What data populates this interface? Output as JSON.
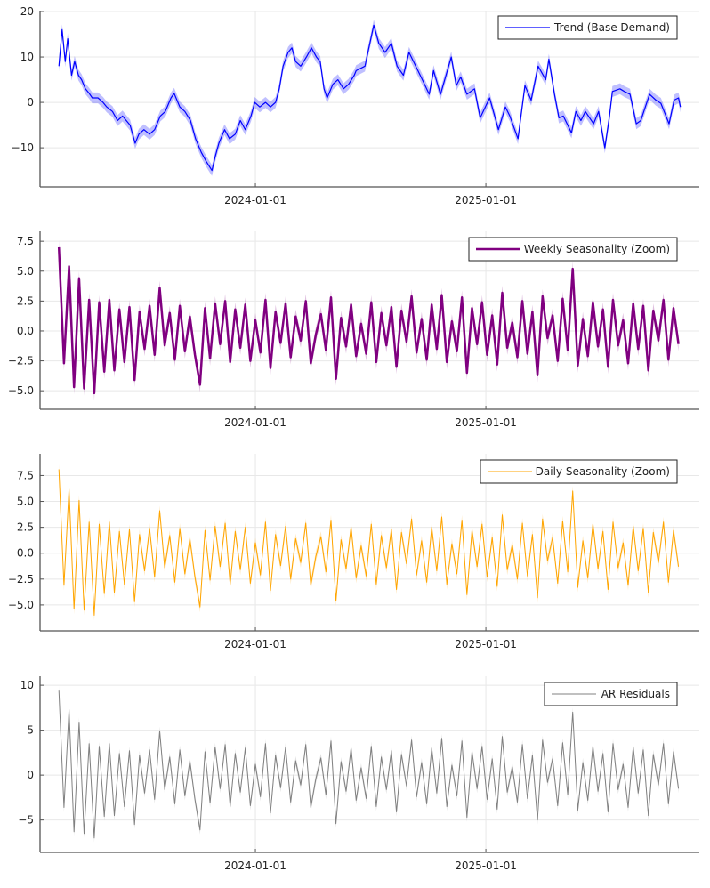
{
  "colors": {
    "trend": "#0000ff",
    "weekly": "#800080",
    "daily": "#ffa500",
    "residual": "#808080"
  },
  "chart_data": [
    {
      "type": "line",
      "x_unit": "days relative to 2024-01-01",
      "legend": "Trend (Base Demand)",
      "legend_position": "top-right",
      "grid": true,
      "xlim": [
        -342,
        705
      ],
      "ylim": [
        -18.6,
        20.2
      ],
      "yticks": [
        {
          "v": 20,
          "label": "20"
        },
        {
          "v": 10,
          "label": "10"
        },
        {
          "v": 0,
          "label": "0"
        },
        {
          "v": -10,
          "label": "−10"
        }
      ],
      "xticks": [
        {
          "v": 0,
          "label": "2024-01-01"
        },
        {
          "v": 366,
          "label": "2025-01-01"
        }
      ],
      "color_key": "trend",
      "points": [
        [
          -312,
          8
        ],
        [
          -307,
          16
        ],
        [
          -302,
          9
        ],
        [
          -298,
          14
        ],
        [
          -292,
          6
        ],
        [
          -287,
          9
        ],
        [
          -281,
          6
        ],
        [
          -276,
          5
        ],
        [
          -270,
          3
        ],
        [
          -264,
          2
        ],
        [
          -259,
          1
        ],
        [
          -250,
          1
        ],
        [
          -242,
          0
        ],
        [
          -236,
          -1
        ],
        [
          -227,
          -2
        ],
        [
          -219,
          -4
        ],
        [
          -211,
          -3
        ],
        [
          -199,
          -5
        ],
        [
          -191,
          -9
        ],
        [
          -185,
          -7
        ],
        [
          -177,
          -6
        ],
        [
          -168,
          -7
        ],
        [
          -160,
          -6
        ],
        [
          -151,
          -3
        ],
        [
          -143,
          -2
        ],
        [
          -134,
          1
        ],
        [
          -129,
          2
        ],
        [
          -120,
          -1
        ],
        [
          -112,
          -2
        ],
        [
          -103,
          -4
        ],
        [
          -95,
          -8
        ],
        [
          -86,
          -11
        ],
        [
          -78,
          -13
        ],
        [
          -69,
          -15
        ],
        [
          -64,
          -12
        ],
        [
          -58,
          -9
        ],
        [
          -49,
          -6
        ],
        [
          -41,
          -8
        ],
        [
          -32,
          -7
        ],
        [
          -24,
          -4
        ],
        [
          -16,
          -6
        ],
        [
          -7,
          -3
        ],
        [
          -1,
          0
        ],
        [
          7,
          -1
        ],
        [
          16,
          0
        ],
        [
          24,
          -1
        ],
        [
          32,
          0
        ],
        [
          38,
          3
        ],
        [
          44,
          8
        ],
        [
          52,
          11
        ],
        [
          58,
          12
        ],
        [
          64,
          9
        ],
        [
          72,
          8
        ],
        [
          81,
          10
        ],
        [
          89,
          12
        ],
        [
          97,
          10
        ],
        [
          103,
          9
        ],
        [
          109,
          3
        ],
        [
          114,
          1
        ],
        [
          123,
          4
        ],
        [
          131,
          5
        ],
        [
          140,
          3
        ],
        [
          148,
          4
        ],
        [
          157,
          6
        ],
        [
          160,
          7
        ],
        [
          174,
          8
        ],
        [
          188,
          17
        ],
        [
          196,
          13
        ],
        [
          206,
          11
        ],
        [
          216,
          13
        ],
        [
          225,
          8
        ],
        [
          235,
          6
        ],
        [
          244,
          11
        ],
        [
          263,
          5.6
        ],
        [
          276,
          1.8
        ],
        [
          283,
          7
        ],
        [
          294,
          1.8
        ],
        [
          311,
          10
        ],
        [
          319,
          3.7
        ],
        [
          326,
          5.6
        ],
        [
          336,
          1.8
        ],
        [
          348,
          3
        ],
        [
          357,
          -3.4
        ],
        [
          372,
          1
        ],
        [
          386,
          -6
        ],
        [
          397,
          -1
        ],
        [
          404,
          -3
        ],
        [
          417,
          -8
        ],
        [
          428,
          3.7
        ],
        [
          438,
          0.5
        ],
        [
          449,
          8
        ],
        [
          461,
          5
        ],
        [
          466,
          9.5
        ],
        [
          475,
          1.8
        ],
        [
          482,
          -3.4
        ],
        [
          489,
          -3
        ],
        [
          502,
          -6.7
        ],
        [
          509,
          -2
        ],
        [
          517,
          -4
        ],
        [
          524,
          -2
        ],
        [
          537,
          -4.7
        ],
        [
          545,
          -2
        ],
        [
          555,
          -10
        ],
        [
          562,
          -3.4
        ],
        [
          567,
          2.4
        ],
        [
          579,
          3
        ],
        [
          586,
          2.4
        ],
        [
          595,
          1.8
        ],
        [
          605,
          -4.7
        ],
        [
          612,
          -4
        ],
        [
          626,
          1.8
        ],
        [
          636,
          0.5
        ],
        [
          644,
          -0.2
        ],
        [
          657,
          -4.7
        ],
        [
          665,
          0.5
        ],
        [
          672,
          1
        ],
        [
          675,
          -1
        ]
      ]
    },
    {
      "type": "line",
      "x_unit": "days relative to 2024-01-01",
      "legend": "Weekly Seasonality (Zoom)",
      "legend_position": "top-right",
      "grid": true,
      "xlim": [
        -342,
        705
      ],
      "ylim": [
        -6.55,
        8.33
      ],
      "yticks": [
        {
          "v": 7.5,
          "label": "7.5"
        },
        {
          "v": 5,
          "label": "5.0"
        },
        {
          "v": 2.5,
          "label": "2.5"
        },
        {
          "v": 0,
          "label": "0.0"
        },
        {
          "v": -2.5,
          "label": "−2.5"
        },
        {
          "v": -5,
          "label": "−5.0"
        }
      ],
      "xticks": [
        {
          "v": 0,
          "label": "2024-01-01"
        },
        {
          "v": 366,
          "label": "2025-01-01"
        }
      ],
      "color_key": "weekly",
      "x_start": -312,
      "x_step": 8,
      "values": [
        7.0,
        -2.7,
        5.4,
        -4.7,
        4.4,
        -4.8,
        2.6,
        -5.2,
        2.4,
        -3.4,
        2.6,
        -3.3,
        1.8,
        -2.6,
        2.0,
        -4.1,
        1.6,
        -1.5,
        2.1,
        -2.0,
        3.6,
        -1.2,
        1.5,
        -2.4,
        2.1,
        -1.7,
        1.2,
        -2.0,
        -4.5,
        1.9,
        -2.3,
        2.3,
        -1.1,
        2.5,
        -2.6,
        1.8,
        -1.4,
        2.2,
        -2.5,
        0.9,
        -1.8,
        2.6,
        -3.1,
        1.6,
        -1.0,
        2.3,
        -2.2,
        1.2,
        -0.8,
        2.5,
        -2.7,
        -0.3,
        1.4,
        -1.6,
        2.8,
        -4.0,
        1.1,
        -1.3,
        2.2,
        -2.1,
        0.6,
        -1.9,
        2.4,
        -2.6,
        1.5,
        -1.2,
        2.0,
        -3.0,
        1.7,
        -0.9,
        2.9,
        -1.8,
        1.0,
        -2.4,
        2.2,
        -1.5,
        3.0,
        -2.6,
        0.8,
        -1.7,
        2.8,
        -3.5,
        1.9,
        -1.1,
        2.4,
        -2.0,
        1.3,
        -2.8,
        3.2,
        -1.4,
        0.7,
        -2.2,
        2.5,
        -1.9,
        1.6,
        -3.7,
        2.9,
        -0.6,
        1.3,
        -2.5,
        2.7,
        -1.6,
        5.2,
        -2.9,
        1.0,
        -2.1,
        2.4,
        -1.3,
        1.8,
        -3.0,
        2.6,
        -1.2,
        0.9,
        -2.7,
        2.3,
        -1.5,
        2.1,
        -3.3,
        1.7,
        -0.8,
        2.6,
        -2.4,
        1.9,
        -1.1
      ]
    },
    {
      "type": "line",
      "x_unit": "days relative to 2024-01-01",
      "legend": "Daily Seasonality (Zoom)",
      "legend_position": "top-right",
      "grid": true,
      "xlim": [
        -342,
        705
      ],
      "ylim": [
        -7.5,
        9.6
      ],
      "yticks": [
        {
          "v": 7.5,
          "label": "7.5"
        },
        {
          "v": 5,
          "label": "5.0"
        },
        {
          "v": 2.5,
          "label": "2.5"
        },
        {
          "v": 0,
          "label": "0.0"
        },
        {
          "v": -2.5,
          "label": "−2.5"
        },
        {
          "v": -5,
          "label": "−5.0"
        }
      ],
      "xticks": [
        {
          "v": 0,
          "label": "2024-01-01"
        },
        {
          "v": 366,
          "label": "2025-01-01"
        }
      ],
      "color_key": "daily",
      "x_start": -312,
      "x_step": 8,
      "values": [
        8.1,
        -3.1,
        6.2,
        -5.4,
        5.1,
        -5.5,
        3.0,
        -6.0,
        2.8,
        -3.9,
        3.0,
        -3.8,
        2.1,
        -3.0,
        2.3,
        -4.7,
        1.8,
        -1.7,
        2.4,
        -2.3,
        4.1,
        -1.4,
        1.7,
        -2.8,
        2.4,
        -2.0,
        1.4,
        -2.3,
        -5.2,
        2.2,
        -2.6,
        2.6,
        -1.3,
        2.9,
        -3.0,
        2.1,
        -1.6,
        2.5,
        -2.9,
        1.0,
        -2.1,
        3.0,
        -3.6,
        1.8,
        -1.2,
        2.6,
        -2.5,
        1.4,
        -0.9,
        2.9,
        -3.1,
        -0.3,
        1.6,
        -1.8,
        3.2,
        -4.6,
        1.3,
        -1.5,
        2.5,
        -2.4,
        0.7,
        -2.2,
        2.8,
        -3.0,
        1.7,
        -1.4,
        2.3,
        -3.5,
        2.0,
        -1.0,
        3.3,
        -2.1,
        1.2,
        -2.8,
        2.5,
        -1.7,
        3.5,
        -3.0,
        0.9,
        -2.0,
        3.2,
        -4.0,
        2.2,
        -1.3,
        2.8,
        -2.3,
        1.5,
        -3.2,
        3.7,
        -1.6,
        0.8,
        -2.5,
        2.9,
        -2.2,
        1.8,
        -4.3,
        3.3,
        -0.7,
        1.5,
        -2.9,
        3.1,
        -1.8,
        6.0,
        -3.3,
        1.2,
        -2.4,
        2.8,
        -1.5,
        2.1,
        -3.5,
        3.0,
        -1.4,
        1.0,
        -3.1,
        2.6,
        -1.7,
        2.4,
        -3.8,
        2.0,
        -0.9,
        3.0,
        -2.8,
        2.2,
        -1.3
      ]
    },
    {
      "type": "line",
      "x_unit": "days relative to 2024-01-01",
      "legend": "AR Residuals",
      "legend_position": "top-right",
      "grid": true,
      "xlim": [
        -342,
        705
      ],
      "ylim": [
        -8.6,
        11
      ],
      "yticks": [
        {
          "v": 10,
          "label": "10"
        },
        {
          "v": 5,
          "label": "5"
        },
        {
          "v": 0,
          "label": "0"
        },
        {
          "v": -5,
          "label": "−5"
        }
      ],
      "xticks": [
        {
          "v": 0,
          "label": "2024-01-01"
        },
        {
          "v": 366,
          "label": "2025-01-01"
        }
      ],
      "color_key": "residual",
      "x_start": -312,
      "x_step": 8,
      "values": [
        9.4,
        -3.6,
        7.3,
        -6.3,
        5.9,
        -6.5,
        3.5,
        -7.0,
        3.2,
        -4.6,
        3.5,
        -4.5,
        2.4,
        -3.5,
        2.7,
        -5.5,
        2.2,
        -2.0,
        2.8,
        -2.7,
        4.9,
        -1.6,
        2.0,
        -3.2,
        2.8,
        -2.3,
        1.6,
        -2.7,
        -6.1,
        2.6,
        -3.1,
        3.1,
        -1.5,
        3.4,
        -3.5,
        2.4,
        -1.9,
        3.0,
        -3.4,
        1.2,
        -2.4,
        3.5,
        -4.2,
        2.2,
        -1.4,
        3.1,
        -3.0,
        1.6,
        -1.1,
        3.4,
        -3.6,
        -0.4,
        1.9,
        -2.2,
        3.8,
        -5.4,
        1.5,
        -1.8,
        3.0,
        -2.8,
        0.8,
        -2.6,
        3.2,
        -3.5,
        2.0,
        -1.6,
        2.7,
        -4.1,
        2.3,
        -1.2,
        3.9,
        -2.4,
        1.4,
        -3.2,
        3.0,
        -2.0,
        4.1,
        -3.5,
        1.1,
        -2.3,
        3.8,
        -4.7,
        2.6,
        -1.5,
        3.2,
        -2.7,
        1.8,
        -3.8,
        4.3,
        -1.9,
        0.9,
        -3.0,
        3.4,
        -2.6,
        2.2,
        -5.0,
        3.9,
        -0.8,
        1.8,
        -3.4,
        3.6,
        -2.2,
        7.0,
        -3.9,
        1.4,
        -2.8,
        3.2,
        -1.8,
        2.4,
        -4.1,
        3.5,
        -1.6,
        1.2,
        -3.6,
        3.1,
        -2.0,
        2.8,
        -4.5,
        2.3,
        -1.1,
        3.5,
        -3.2,
        2.6,
        -1.5
      ]
    }
  ]
}
